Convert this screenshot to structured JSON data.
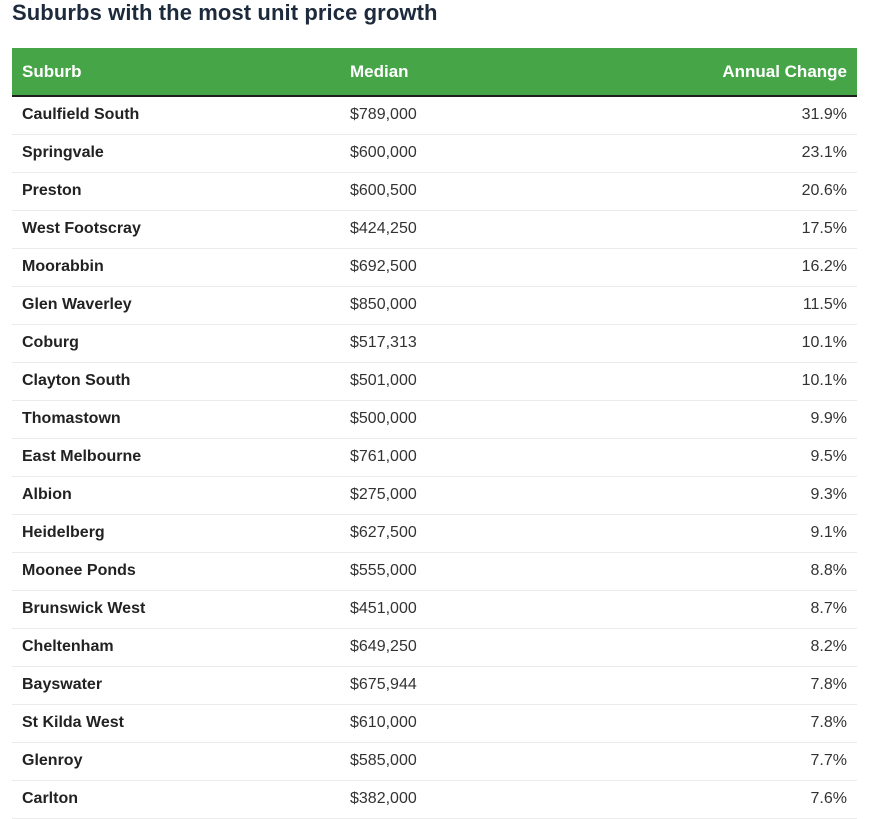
{
  "title": "Suburbs with the most unit price growth",
  "colors": {
    "header_bg": "#46a547",
    "header_text": "#ffffff",
    "title_text": "#1c2a3c"
  },
  "table": {
    "headers": [
      "Suburb",
      "Median",
      "Annual Change"
    ],
    "rows": [
      [
        "Caulfield South",
        "$789,000",
        "31.9%"
      ],
      [
        "Springvale",
        "$600,000",
        "23.1%"
      ],
      [
        "Preston",
        "$600,500",
        "20.6%"
      ],
      [
        "West Footscray",
        "$424,250",
        "17.5%"
      ],
      [
        "Moorabbin",
        "$692,500",
        "16.2%"
      ],
      [
        "Glen Waverley",
        "$850,000",
        "11.5%"
      ],
      [
        "Coburg",
        "$517,313",
        "10.1%"
      ],
      [
        "Clayton South",
        "$501,000",
        "10.1%"
      ],
      [
        "Thomastown",
        "$500,000",
        "9.9%"
      ],
      [
        "East Melbourne",
        "$761,000",
        "9.5%"
      ],
      [
        "Albion",
        "$275,000",
        "9.3%"
      ],
      [
        "Heidelberg",
        "$627,500",
        "9.1%"
      ],
      [
        "Moonee Ponds",
        "$555,000",
        "8.8%"
      ],
      [
        "Brunswick West",
        "$451,000",
        "8.7%"
      ],
      [
        "Cheltenham",
        "$649,250",
        "8.2%"
      ],
      [
        "Bayswater",
        "$675,944",
        "7.8%"
      ],
      [
        "St Kilda West",
        "$610,000",
        "7.8%"
      ],
      [
        "Glenroy",
        "$585,000",
        "7.7%"
      ],
      [
        "Carlton",
        "$382,000",
        "7.6%"
      ]
    ]
  }
}
